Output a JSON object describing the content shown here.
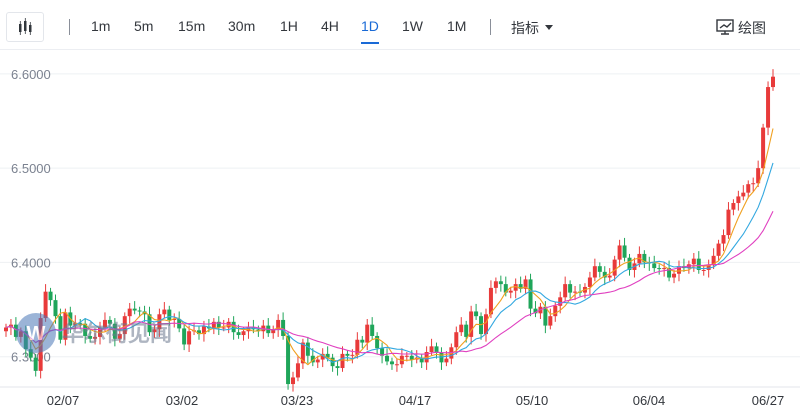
{
  "toolbar": {
    "candle_icon": "candlestick-chart-icon",
    "timeframes": [
      {
        "label": "1m",
        "active": false
      },
      {
        "label": "5m",
        "active": false
      },
      {
        "label": "15m",
        "active": false
      },
      {
        "label": "30m",
        "active": false
      },
      {
        "label": "1H",
        "active": false
      },
      {
        "label": "4H",
        "active": false
      },
      {
        "label": "1D",
        "active": true
      },
      {
        "label": "1W",
        "active": false
      },
      {
        "label": "1M",
        "active": false
      }
    ],
    "indicators_label": "指标",
    "indicators_icon": "caret-down-icon",
    "draw_label": "绘图",
    "draw_icon": "drawing-tool-icon",
    "active_color": "#1a6ad6"
  },
  "watermark": {
    "text": "华尔街见闻",
    "logo_letter": "W"
  },
  "colors": {
    "up": "#e83a3a",
    "down": "#1fa55a",
    "ma5": "#f0a020",
    "ma10": "#33a8e0",
    "ma20": "#e040c0"
  },
  "chart_data": {
    "type": "candlestick",
    "y_ticks": [
      "6.6000",
      "6.5000",
      "6.4000",
      "6.3000"
    ],
    "x_ticks": [
      "02/07",
      "03/02",
      "03/23",
      "04/17",
      "05/10",
      "06/04",
      "06/27"
    ],
    "ylim": [
      6.27,
      6.62
    ],
    "grid": true,
    "close": [
      6.331,
      6.334,
      6.321,
      6.327,
      6.308,
      6.299,
      6.285,
      6.341,
      6.369,
      6.36,
      6.343,
      6.318,
      6.347,
      6.333,
      6.336,
      6.335,
      6.322,
      6.319,
      6.321,
      6.331,
      6.339,
      6.335,
      6.319,
      6.324,
      6.343,
      6.351,
      6.349,
      6.348,
      6.345,
      6.326,
      6.329,
      6.345,
      6.35,
      6.339,
      6.34,
      6.33,
      6.313,
      6.327,
      6.328,
      6.324,
      6.332,
      6.33,
      6.337,
      6.331,
      6.331,
      6.337,
      6.326,
      6.323,
      6.327,
      6.331,
      6.329,
      6.327,
      6.333,
      6.325,
      6.329,
      6.339,
      6.322,
      6.271,
      6.278,
      6.293,
      6.315,
      6.301,
      6.294,
      6.297,
      6.303,
      6.299,
      6.29,
      6.288,
      6.303,
      6.301,
      6.302,
      6.318,
      6.315,
      6.334,
      6.322,
      6.309,
      6.301,
      6.295,
      6.292,
      6.292,
      6.301,
      6.301,
      6.297,
      6.299,
      6.294,
      6.305,
      6.311,
      6.304,
      6.294,
      6.298,
      6.31,
      6.326,
      6.334,
      6.321,
      6.348,
      6.343,
      6.324,
      6.345,
      6.373,
      6.38,
      6.377,
      6.368,
      6.37,
      6.377,
      6.372,
      6.382,
      6.351,
      6.346,
      6.353,
      6.333,
      6.343,
      6.354,
      6.363,
      6.377,
      6.368,
      6.369,
      6.368,
      6.374,
      6.384,
      6.396,
      6.39,
      6.384,
      6.386,
      6.403,
      6.418,
      6.405,
      6.392,
      6.399,
      6.409,
      6.4,
      6.399,
      6.394,
      6.393,
      6.394,
      6.384,
      6.388,
      6.396,
      6.394,
      6.398,
      6.404,
      6.392,
      6.392,
      6.397,
      6.407,
      6.42,
      6.429,
      6.456,
      6.463,
      6.47,
      6.474,
      6.483,
      6.484,
      6.5,
      6.543,
      6.586,
      6.597
    ]
  }
}
